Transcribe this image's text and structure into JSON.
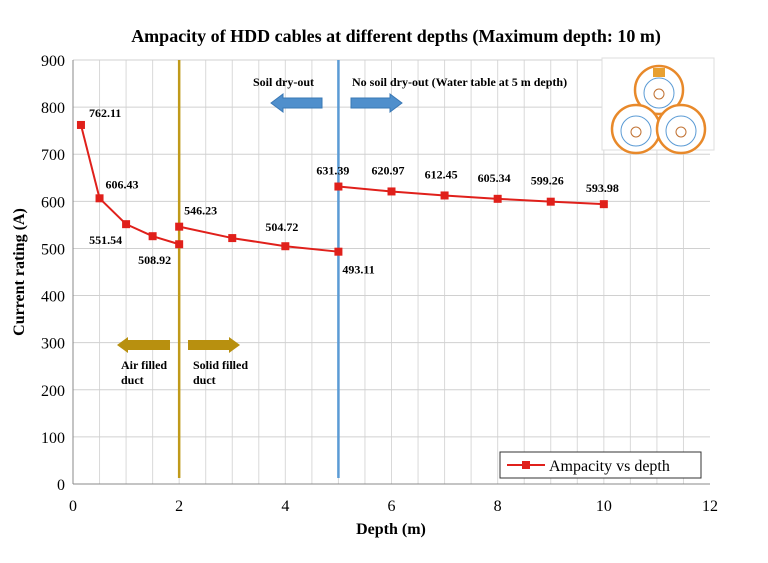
{
  "chart_data": {
    "type": "line",
    "title": "Ampacity of HDD cables at different depths (Maximum depth: 10 m)",
    "xlabel": "Depth (m)",
    "ylabel": "Current rating (A)",
    "xlim": [
      0,
      12
    ],
    "ylim": [
      0,
      900
    ],
    "xticks": [
      0,
      2,
      4,
      6,
      8,
      10,
      12
    ],
    "yticks": [
      0,
      100,
      200,
      300,
      400,
      500,
      600,
      700,
      800,
      900
    ],
    "grid": true,
    "legend_position": "bottom-right",
    "series": [
      {
        "name": "Ampacity vs depth",
        "color": "#e0201b",
        "points": [
          {
            "x": 0.15,
            "y": 762.11,
            "label": "762.11"
          },
          {
            "x": 0.5,
            "y": 606.43,
            "label": "606.43"
          },
          {
            "x": 1.0,
            "y": 551.54,
            "label": "551.54"
          },
          {
            "x": 1.5,
            "y": 526,
            "label": ""
          },
          {
            "x": 2.0,
            "y": 508.92,
            "label": "508.92"
          },
          {
            "x": 2.0,
            "y": 546.23,
            "label": "546.23"
          },
          {
            "x": 3.0,
            "y": 522,
            "label": ""
          },
          {
            "x": 4.0,
            "y": 504.72,
            "label": "504.72"
          },
          {
            "x": 5.0,
            "y": 493.11,
            "label": "493.11"
          },
          {
            "x": 5.0,
            "y": 631.39,
            "label": "631.39"
          },
          {
            "x": 6.0,
            "y": 620.97,
            "label": "620.97"
          },
          {
            "x": 7.0,
            "y": 612.45,
            "label": "612.45"
          },
          {
            "x": 8.0,
            "y": 605.34,
            "label": "605.34"
          },
          {
            "x": 9.0,
            "y": 599.26,
            "label": "599.26"
          },
          {
            "x": 10.0,
            "y": 593.98,
            "label": "593.98"
          }
        ]
      }
    ],
    "reference_lines": [
      {
        "x": 2,
        "color": "#c09a1a"
      },
      {
        "x": 5,
        "color": "#5b9bd5"
      }
    ],
    "annotations": {
      "soil_dry_out": "Soil dry-out",
      "no_soil_dry_out": "No soil dry-out (Water table at 5 m depth)",
      "air_filled_1": "Air filled",
      "air_filled_2": "duct",
      "solid_filled_1": "Solid filled",
      "solid_filled_2": "duct"
    },
    "colors": {
      "gold_arrow": "#b8900f",
      "blue_arrow": "#4f8fcc",
      "cable_orange": "#e8892a"
    }
  }
}
